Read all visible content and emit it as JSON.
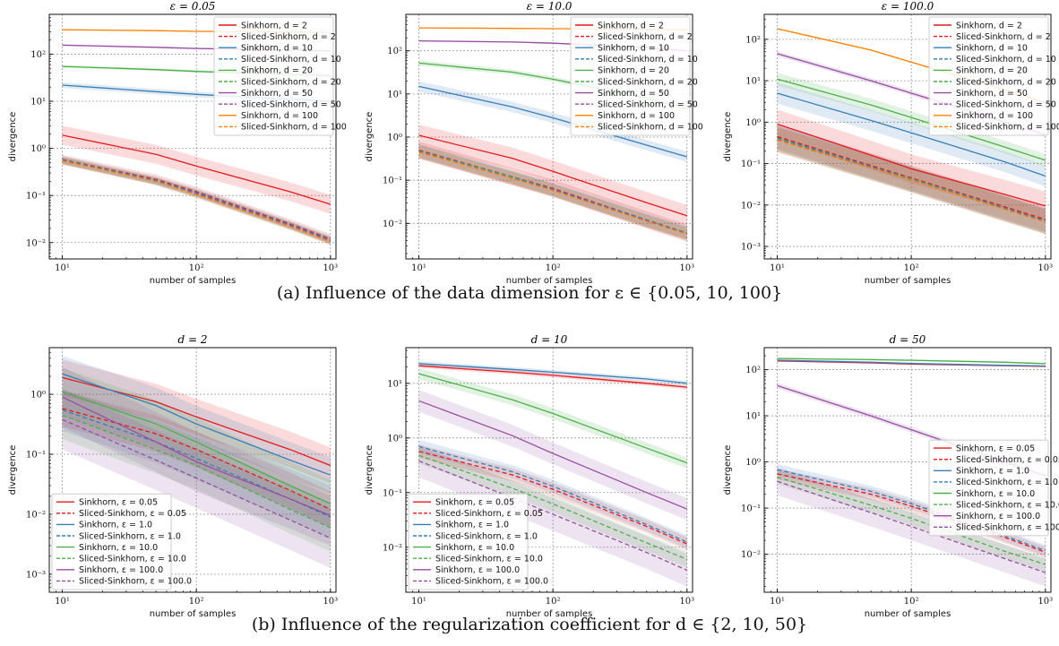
{
  "captions": {
    "a": "(a)  Influence of the data dimension for ε ∈ {0.05, 10, 100}",
    "b": "(b)  Influence of the regularization coefficient for d ∈ {2, 10, 50}"
  },
  "chart_data": [
    {
      "type": "line",
      "title": "ε = 0.05",
      "xlabel": "number of samples",
      "ylabel": "divergence",
      "xscale": "log",
      "yscale": "log",
      "xlim": [
        8,
        1100
      ],
      "ylim": [
        0.0045,
        700
      ],
      "x_ticks": [
        10,
        100,
        1000
      ],
      "x_tick_labels": [
        "10¹",
        "10²",
        "10³"
      ],
      "y_ticks": [
        0.01,
        0.1,
        1,
        10,
        100
      ],
      "y_tick_labels": [
        "10⁻²",
        "10⁻¹",
        "10⁰",
        "10¹",
        "10²"
      ],
      "grid": true,
      "legend_position": "top-right",
      "x": [
        10,
        50,
        100,
        500,
        1000
      ],
      "series": [
        {
          "name": "Sinkhorn, d = 2",
          "color": "#e41a1c",
          "dashed": false,
          "values": [
            1.9,
            0.75,
            0.42,
            0.12,
            0.065
          ],
          "band": 0.2
        },
        {
          "name": "Sliced-Sinkhorn, d = 2",
          "color": "#e41a1c",
          "dashed": true,
          "values": [
            0.58,
            0.22,
            0.12,
            0.025,
            0.012
          ],
          "band": 0.1
        },
        {
          "name": "Sinkhorn, d = 10",
          "color": "#377eb8",
          "dashed": false,
          "values": [
            22,
            16,
            14,
            11,
            10
          ],
          "band": 0.06
        },
        {
          "name": "Sliced-Sinkhorn, d = 10",
          "color": "#377eb8",
          "dashed": true,
          "values": [
            0.57,
            0.21,
            0.115,
            0.024,
            0.0115
          ],
          "band": 0.08
        },
        {
          "name": "Sinkhorn, d = 20",
          "color": "#4daf4a",
          "dashed": false,
          "values": [
            55,
            47,
            43,
            37,
            35
          ],
          "band": 0.03
        },
        {
          "name": "Sliced-Sinkhorn, d = 20",
          "color": "#4daf4a",
          "dashed": true,
          "values": [
            0.56,
            0.2,
            0.11,
            0.023,
            0.011
          ],
          "band": 0.08
        },
        {
          "name": "Sinkhorn, d = 50",
          "color": "#984ea3",
          "dashed": false,
          "values": [
            155,
            140,
            132,
            122,
            118
          ],
          "band": 0.02
        },
        {
          "name": "Sliced-Sinkhorn, d = 50",
          "color": "#984ea3",
          "dashed": true,
          "values": [
            0.55,
            0.2,
            0.11,
            0.023,
            0.011
          ],
          "band": 0.08
        },
        {
          "name": "Sinkhorn, d = 100",
          "color": "#ff7f00",
          "dashed": false,
          "values": [
            330,
            315,
            305,
            295,
            290
          ],
          "band": 0.01
        },
        {
          "name": "Sliced-Sinkhorn, d = 100",
          "color": "#ff7f00",
          "dashed": true,
          "values": [
            0.54,
            0.2,
            0.105,
            0.022,
            0.0105
          ],
          "band": 0.08
        }
      ]
    },
    {
      "type": "line",
      "title": "ε = 10.0",
      "xlabel": "number of samples",
      "ylabel": "divergence",
      "xscale": "log",
      "yscale": "log",
      "xlim": [
        8,
        1100
      ],
      "ylim": [
        0.0015,
        700
      ],
      "x_ticks": [
        10,
        100,
        1000
      ],
      "x_tick_labels": [
        "10¹",
        "10²",
        "10³"
      ],
      "y_ticks": [
        0.01,
        0.1,
        1,
        10,
        100
      ],
      "y_tick_labels": [
        "10⁻²",
        "10⁻¹",
        "10⁰",
        "10¹",
        "10²"
      ],
      "grid": true,
      "legend_position": "top-right",
      "x": [
        10,
        50,
        100,
        500,
        1000
      ],
      "series": [
        {
          "name": "Sinkhorn, d = 2",
          "color": "#e41a1c",
          "dashed": false,
          "values": [
            1.1,
            0.32,
            0.16,
            0.03,
            0.015
          ],
          "band": 0.25
        },
        {
          "name": "Sliced-Sinkhorn, d = 2",
          "color": "#e41a1c",
          "dashed": true,
          "values": [
            0.5,
            0.12,
            0.065,
            0.012,
            0.006
          ],
          "band": 0.2
        },
        {
          "name": "Sinkhorn, d = 10",
          "color": "#377eb8",
          "dashed": false,
          "values": [
            15,
            5,
            2.8,
            0.65,
            0.35
          ],
          "band": 0.12
        },
        {
          "name": "Sliced-Sinkhorn, d = 10",
          "color": "#377eb8",
          "dashed": true,
          "values": [
            0.48,
            0.12,
            0.062,
            0.012,
            0.006
          ],
          "band": 0.15
        },
        {
          "name": "Sinkhorn, d = 20",
          "color": "#4daf4a",
          "dashed": false,
          "values": [
            52,
            32,
            22,
            8,
            4.5
          ],
          "band": 0.06
        },
        {
          "name": "Sliced-Sinkhorn, d = 20",
          "color": "#4daf4a",
          "dashed": true,
          "values": [
            0.47,
            0.115,
            0.06,
            0.0115,
            0.006
          ],
          "band": 0.15
        },
        {
          "name": "Sinkhorn, d = 50",
          "color": "#984ea3",
          "dashed": false,
          "values": [
            170,
            160,
            150,
            120,
            100
          ],
          "band": 0.02
        },
        {
          "name": "Sliced-Sinkhorn, d = 50",
          "color": "#984ea3",
          "dashed": true,
          "values": [
            0.46,
            0.11,
            0.06,
            0.0115,
            0.0058
          ],
          "band": 0.15
        },
        {
          "name": "Sinkhorn, d = 100",
          "color": "#ff7f00",
          "dashed": false,
          "values": [
            340,
            330,
            325,
            315,
            310
          ],
          "band": 0.01
        },
        {
          "name": "Sliced-Sinkhorn, d = 100",
          "color": "#ff7f00",
          "dashed": true,
          "values": [
            0.45,
            0.11,
            0.058,
            0.0112,
            0.0056
          ],
          "band": 0.15
        }
      ]
    },
    {
      "type": "line",
      "title": "ε = 100.0",
      "xlabel": "number of samples",
      "ylabel": "divergence",
      "xscale": "log",
      "yscale": "log",
      "xlim": [
        8,
        1100
      ],
      "ylim": [
        0.0005,
        400
      ],
      "x_ticks": [
        10,
        100,
        1000
      ],
      "x_tick_labels": [
        "10¹",
        "10²",
        "10³"
      ],
      "y_ticks": [
        0.001,
        0.01,
        0.1,
        1,
        10,
        100
      ],
      "y_tick_labels": [
        "10⁻³",
        "10⁻²",
        "10⁻¹",
        "10⁰",
        "10¹",
        "10²"
      ],
      "grid": true,
      "legend_position": "top-right",
      "x": [
        10,
        50,
        100,
        500,
        1000
      ],
      "series": [
        {
          "name": "Sinkhorn, d = 2",
          "color": "#e41a1c",
          "dashed": false,
          "values": [
            0.9,
            0.16,
            0.075,
            0.018,
            0.0095
          ],
          "band": 0.35
        },
        {
          "name": "Sliced-Sinkhorn, d = 2",
          "color": "#e41a1c",
          "dashed": true,
          "values": [
            0.45,
            0.09,
            0.045,
            0.009,
            0.0045
          ],
          "band": 0.3
        },
        {
          "name": "Sinkhorn, d = 10",
          "color": "#377eb8",
          "dashed": false,
          "values": [
            5,
            1.1,
            0.55,
            0.11,
            0.05
          ],
          "band": 0.25
        },
        {
          "name": "Sliced-Sinkhorn, d = 10",
          "color": "#377eb8",
          "dashed": true,
          "values": [
            0.42,
            0.085,
            0.043,
            0.0085,
            0.0042
          ],
          "band": 0.3
        },
        {
          "name": "Sinkhorn, d = 20",
          "color": "#4daf4a",
          "dashed": false,
          "values": [
            11,
            2.6,
            1.3,
            0.25,
            0.12
          ],
          "band": 0.15
        },
        {
          "name": "Sliced-Sinkhorn, d = 20",
          "color": "#4daf4a",
          "dashed": true,
          "values": [
            0.4,
            0.082,
            0.042,
            0.0082,
            0.004
          ],
          "band": 0.3
        },
        {
          "name": "Sinkhorn, d = 50",
          "color": "#984ea3",
          "dashed": false,
          "values": [
            45,
            10,
            5,
            1,
            0.5
          ],
          "band": 0.06
        },
        {
          "name": "Sliced-Sinkhorn, d = 50",
          "color": "#984ea3",
          "dashed": true,
          "values": [
            0.38,
            0.08,
            0.04,
            0.008,
            0.004
          ],
          "band": 0.3
        },
        {
          "name": "Sinkhorn, d = 100",
          "color": "#ff7f00",
          "dashed": false,
          "values": [
            180,
            55,
            28,
            6,
            3
          ],
          "band": 0.02
        },
        {
          "name": "Sliced-Sinkhorn, d = 100",
          "color": "#ff7f00",
          "dashed": true,
          "values": [
            0.37,
            0.078,
            0.04,
            0.0078,
            0.0039
          ],
          "band": 0.3
        }
      ]
    },
    {
      "type": "line",
      "title": "d = 2",
      "xlabel": "number of samples",
      "ylabel": "divergence",
      "xscale": "log",
      "yscale": "log",
      "xlim": [
        8,
        1100
      ],
      "ylim": [
        0.0005,
        6
      ],
      "x_ticks": [
        10,
        100,
        1000
      ],
      "x_tick_labels": [
        "10¹",
        "10²",
        "10³"
      ],
      "y_ticks": [
        0.001,
        0.01,
        0.1,
        1
      ],
      "y_tick_labels": [
        "10⁻³",
        "10⁻²",
        "10⁻¹",
        "10⁰"
      ],
      "grid": true,
      "legend_position": "bottom-left",
      "x": [
        10,
        50,
        100,
        500,
        1000
      ],
      "series": [
        {
          "name": "Sinkhorn, ε = 0.05",
          "color": "#e41a1c",
          "dashed": false,
          "values": [
            1.9,
            0.75,
            0.42,
            0.12,
            0.065
          ],
          "band": 0.3
        },
        {
          "name": "Sliced-Sinkhorn, ε = 0.05",
          "color": "#e41a1c",
          "dashed": true,
          "values": [
            0.58,
            0.22,
            0.12,
            0.025,
            0.012
          ],
          "band": 0.3
        },
        {
          "name": "Sinkhorn, ε = 1.0",
          "color": "#377eb8",
          "dashed": false,
          "values": [
            2.2,
            0.65,
            0.32,
            0.08,
            0.045
          ],
          "band": 0.3
        },
        {
          "name": "Sliced-Sinkhorn, ε = 1.0",
          "color": "#377eb8",
          "dashed": true,
          "values": [
            0.55,
            0.16,
            0.085,
            0.018,
            0.009
          ],
          "band": 0.35
        },
        {
          "name": "Sinkhorn, ε = 10.0",
          "color": "#4daf4a",
          "dashed": false,
          "values": [
            1.1,
            0.32,
            0.16,
            0.03,
            0.015
          ],
          "band": 0.4
        },
        {
          "name": "Sliced-Sinkhorn, ε = 10.0",
          "color": "#4daf4a",
          "dashed": true,
          "values": [
            0.45,
            0.12,
            0.065,
            0.012,
            0.006
          ],
          "band": 0.4
        },
        {
          "name": "Sinkhorn, ε = 100.0",
          "color": "#984ea3",
          "dashed": false,
          "values": [
            0.9,
            0.16,
            0.075,
            0.018,
            0.0095
          ],
          "band": 0.5
        },
        {
          "name": "Sliced-Sinkhorn, ε = 100.0",
          "color": "#984ea3",
          "dashed": true,
          "values": [
            0.38,
            0.08,
            0.04,
            0.008,
            0.004
          ],
          "band": 0.5
        }
      ]
    },
    {
      "type": "line",
      "title": "d = 10",
      "xlabel": "number of samples",
      "ylabel": "divergence",
      "xscale": "log",
      "yscale": "log",
      "xlim": [
        8,
        1100
      ],
      "ylim": [
        0.0015,
        45
      ],
      "x_ticks": [
        10,
        100,
        1000
      ],
      "x_tick_labels": [
        "10¹",
        "10²",
        "10³"
      ],
      "y_ticks": [
        0.01,
        0.1,
        1,
        10
      ],
      "y_tick_labels": [
        "10⁻²",
        "10⁻¹",
        "10⁰",
        "10¹"
      ],
      "grid": true,
      "legend_position": "bottom-left",
      "x": [
        10,
        50,
        100,
        500,
        1000
      ],
      "series": [
        {
          "name": "Sinkhorn, ε = 0.05",
          "color": "#e41a1c",
          "dashed": false,
          "values": [
            21,
            16,
            14,
            10,
            8.5
          ],
          "band": 0.04
        },
        {
          "name": "Sliced-Sinkhorn, ε = 0.05",
          "color": "#e41a1c",
          "dashed": true,
          "values": [
            0.57,
            0.21,
            0.115,
            0.024,
            0.0115
          ],
          "band": 0.12
        },
        {
          "name": "Sinkhorn, ε = 1.0",
          "color": "#377eb8",
          "dashed": false,
          "values": [
            23,
            18,
            16,
            12,
            10
          ],
          "band": 0.04
        },
        {
          "name": "Sliced-Sinkhorn, ε = 1.0",
          "color": "#377eb8",
          "dashed": true,
          "values": [
            0.7,
            0.24,
            0.13,
            0.026,
            0.0125
          ],
          "band": 0.12
        },
        {
          "name": "Sinkhorn, ε = 10.0",
          "color": "#4daf4a",
          "dashed": false,
          "values": [
            15,
            5,
            2.8,
            0.65,
            0.35
          ],
          "band": 0.1
        },
        {
          "name": "Sliced-Sinkhorn, ε = 10.0",
          "color": "#4daf4a",
          "dashed": true,
          "values": [
            0.48,
            0.12,
            0.062,
            0.012,
            0.006
          ],
          "band": 0.15
        },
        {
          "name": "Sinkhorn, ε = 100.0",
          "color": "#984ea3",
          "dashed": false,
          "values": [
            4.8,
            1.1,
            0.52,
            0.1,
            0.05
          ],
          "band": 0.2
        },
        {
          "name": "Sliced-Sinkhorn, ε = 100.0",
          "color": "#984ea3",
          "dashed": true,
          "values": [
            0.38,
            0.08,
            0.04,
            0.008,
            0.0038
          ],
          "band": 0.3
        }
      ]
    },
    {
      "type": "line",
      "title": "d = 50",
      "xlabel": "number of samples",
      "ylabel": "divergence",
      "xscale": "log",
      "yscale": "log",
      "xlim": [
        8,
        1100
      ],
      "ylim": [
        0.0015,
        300
      ],
      "x_ticks": [
        10,
        100,
        1000
      ],
      "x_tick_labels": [
        "10¹",
        "10²",
        "10³"
      ],
      "y_ticks": [
        0.01,
        0.1,
        1,
        10,
        100
      ],
      "y_tick_labels": [
        "10⁻²",
        "10⁻¹",
        "10⁰",
        "10¹",
        "10²"
      ],
      "grid": true,
      "legend_position": "center-right",
      "x": [
        10,
        50,
        100,
        500,
        1000
      ],
      "series": [
        {
          "name": "Sinkhorn, ε = 0.05",
          "color": "#e41a1c",
          "dashed": false,
          "values": [
            155,
            140,
            132,
            122,
            118
          ],
          "band": 0.02
        },
        {
          "name": "Sliced-Sinkhorn, ε = 0.05",
          "color": "#e41a1c",
          "dashed": true,
          "values": [
            0.55,
            0.2,
            0.11,
            0.023,
            0.011
          ],
          "band": 0.12
        },
        {
          "name": "Sinkhorn, ε = 1.0",
          "color": "#377eb8",
          "dashed": false,
          "values": [
            160,
            145,
            136,
            124,
            120
          ],
          "band": 0.02
        },
        {
          "name": "Sliced-Sinkhorn, ε = 1.0",
          "color": "#377eb8",
          "dashed": true,
          "values": [
            0.68,
            0.23,
            0.125,
            0.025,
            0.012
          ],
          "band": 0.12
        },
        {
          "name": "Sinkhorn, ε = 10.0",
          "color": "#4daf4a",
          "dashed": false,
          "values": [
            175,
            165,
            160,
            145,
            135
          ],
          "band": 0.02
        },
        {
          "name": "Sliced-Sinkhorn, ε = 10.0",
          "color": "#4daf4a",
          "dashed": true,
          "values": [
            0.47,
            0.115,
            0.06,
            0.0115,
            0.006
          ],
          "band": 0.15
        },
        {
          "name": "Sinkhorn, ε = 100.0",
          "color": "#984ea3",
          "dashed": false,
          "values": [
            45,
            10,
            5,
            1,
            0.5
          ],
          "band": 0.06
        },
        {
          "name": "Sliced-Sinkhorn, ε = 100.0",
          "color": "#984ea3",
          "dashed": true,
          "values": [
            0.38,
            0.08,
            0.04,
            0.008,
            0.004
          ],
          "band": 0.3
        }
      ]
    }
  ]
}
